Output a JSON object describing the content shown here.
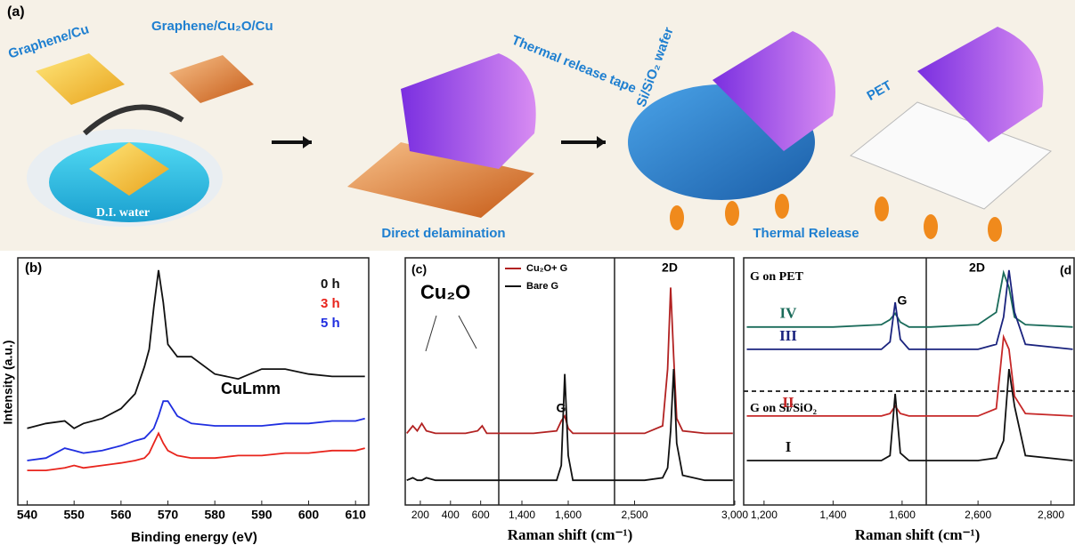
{
  "figure": {
    "panel_a": {
      "label": "(a)",
      "graphene_cu": "Graphene/Cu",
      "graphene_cu2o": "Graphene/Cu₂O/Cu",
      "water": "D.I. water",
      "tape": "Thermal release tape",
      "direct": "Direct delamination",
      "wafer": "Si/SiO₂ wafer",
      "pet": "PET",
      "thermal": "Thermal Release"
    }
  },
  "chart_data": [
    {
      "type": "line",
      "label": "(b)",
      "xlabel": "Binding energy (eV)",
      "ylabel": "Intensity (a.u.)",
      "annotation": "CuLmm",
      "legend": "upper right",
      "x": [
        540,
        544,
        548,
        550,
        552,
        556,
        560,
        563,
        565,
        566,
        567,
        568,
        569,
        570,
        572,
        575,
        580,
        585,
        590,
        595,
        600,
        605,
        610,
        612
      ],
      "xlim": [
        538,
        613
      ],
      "xticks": [
        540,
        550,
        560,
        570,
        580,
        590,
        600,
        610
      ],
      "ylim": [
        0,
        10
      ],
      "series": [
        {
          "name": "0 h",
          "color": "#111111",
          "values": [
            3.1,
            3.3,
            3.4,
            3.1,
            3.3,
            3.5,
            3.9,
            4.5,
            5.6,
            6.3,
            8.0,
            9.5,
            8.2,
            6.5,
            6.0,
            6.0,
            5.3,
            5.1,
            5.5,
            5.5,
            5.3,
            5.2,
            5.2,
            5.2
          ]
        },
        {
          "name": "3 h",
          "color": "#e8241c",
          "values": [
            1.4,
            1.4,
            1.5,
            1.6,
            1.5,
            1.6,
            1.7,
            1.8,
            1.9,
            2.1,
            2.5,
            2.9,
            2.5,
            2.2,
            2.0,
            1.9,
            1.9,
            2.0,
            2.0,
            2.1,
            2.1,
            2.2,
            2.2,
            2.3
          ]
        },
        {
          "name": "5 h",
          "color": "#1f2ee0",
          "values": [
            1.8,
            1.9,
            2.3,
            2.2,
            2.1,
            2.2,
            2.4,
            2.6,
            2.7,
            2.9,
            3.1,
            3.6,
            4.2,
            4.2,
            3.6,
            3.3,
            3.2,
            3.2,
            3.2,
            3.3,
            3.3,
            3.4,
            3.4,
            3.5
          ]
        }
      ]
    },
    {
      "type": "line",
      "label": "(c)",
      "xlabel": "Raman shift (cm⁻¹)",
      "annotations": [
        "Cu₂O",
        "G",
        "2D"
      ],
      "legend": "upper left",
      "x": [
        110,
        150,
        180,
        210,
        240,
        300,
        400,
        500,
        580,
        610,
        640,
        700,
        1320,
        1450,
        1550,
        1570,
        1585,
        1600,
        1620,
        1700,
        1790,
        2410,
        2550,
        2640,
        2665,
        2680,
        2695,
        2710,
        2740,
        2850,
        2990
      ],
      "x_segments": [
        [
          100,
          720
        ],
        [
          1300,
          1800
        ],
        [
          2400,
          3000
        ]
      ],
      "xticks": [
        200,
        400,
        600,
        {
          "value": 1400,
          "label": "1,400"
        },
        {
          "value": 1600,
          "label": "1,600"
        },
        {
          "value": 2500,
          "label": "2,500"
        },
        {
          "value": 3000,
          "label": "3,000"
        }
      ],
      "ylim": [
        0,
        10
      ],
      "series": [
        {
          "name": "Cu₂O+ G",
          "color": "#b22222",
          "values": [
            2.9,
            3.2,
            3.0,
            3.3,
            3.0,
            2.9,
            2.9,
            2.9,
            3.0,
            3.2,
            2.9,
            2.9,
            2.9,
            2.9,
            3.0,
            3.4,
            3.6,
            3.1,
            2.9,
            2.9,
            2.9,
            2.9,
            2.9,
            3.2,
            5.5,
            8.8,
            6.0,
            3.5,
            3.0,
            2.9,
            2.9
          ]
        },
        {
          "name": "Bare G",
          "color": "#111111",
          "values": [
            1.0,
            1.1,
            1.0,
            1.0,
            1.1,
            1.0,
            1.0,
            1.0,
            1.0,
            1.0,
            1.0,
            1.0,
            1.0,
            1.0,
            1.0,
            1.6,
            5.3,
            2.0,
            1.0,
            1.0,
            1.0,
            1.0,
            1.0,
            1.1,
            1.5,
            3.0,
            5.5,
            2.5,
            1.2,
            1.0,
            1.0
          ]
        }
      ]
    },
    {
      "type": "line",
      "label": "(d",
      "xlabel": "Raman shift (cm⁻¹)",
      "annotations": [
        "G on PET",
        "G on Si/SiO₂",
        "G",
        "2D"
      ],
      "x": [
        1150,
        1400,
        1540,
        1565,
        1580,
        1595,
        1620,
        1670,
        2470,
        2600,
        2650,
        2670,
        2685,
        2700,
        2730,
        2860
      ],
      "x_segments": [
        [
          1141,
          1670
        ],
        [
          2458,
          2866
        ]
      ],
      "xticks": [
        {
          "value": 1200,
          "label": "1,200"
        },
        {
          "value": 1400,
          "label": "1,400"
        },
        {
          "value": 1600,
          "label": "1,600"
        },
        {
          "value": 2600,
          "label": "2,600"
        },
        {
          "value": 2800,
          "label": "2,800"
        }
      ],
      "ylim": [
        0,
        10
      ],
      "series": [
        {
          "name": "IV",
          "color": "#1a6b5a",
          "values": [
            7.2,
            7.2,
            7.3,
            7.5,
            7.75,
            7.4,
            7.2,
            7.2,
            7.2,
            7.3,
            7.8,
            9.4,
            8.8,
            7.6,
            7.3,
            7.2
          ]
        },
        {
          "name": "III",
          "color": "#1a237e",
          "values": [
            6.3,
            6.3,
            6.3,
            6.6,
            8.2,
            6.7,
            6.3,
            6.3,
            6.3,
            6.3,
            6.5,
            7.6,
            9.5,
            7.8,
            6.5,
            6.3
          ]
        },
        {
          "name": "II",
          "color": "#c62828",
          "values": [
            3.6,
            3.6,
            3.6,
            3.7,
            4.0,
            3.7,
            3.6,
            3.6,
            3.6,
            3.6,
            3.9,
            6.8,
            6.3,
            4.4,
            3.7,
            3.6
          ]
        },
        {
          "name": "I",
          "color": "#111111",
          "values": [
            1.8,
            1.8,
            1.8,
            2.0,
            4.5,
            2.1,
            1.8,
            1.8,
            1.8,
            1.8,
            1.9,
            2.6,
            5.5,
            4.0,
            2.0,
            1.8
          ]
        }
      ]
    }
  ]
}
